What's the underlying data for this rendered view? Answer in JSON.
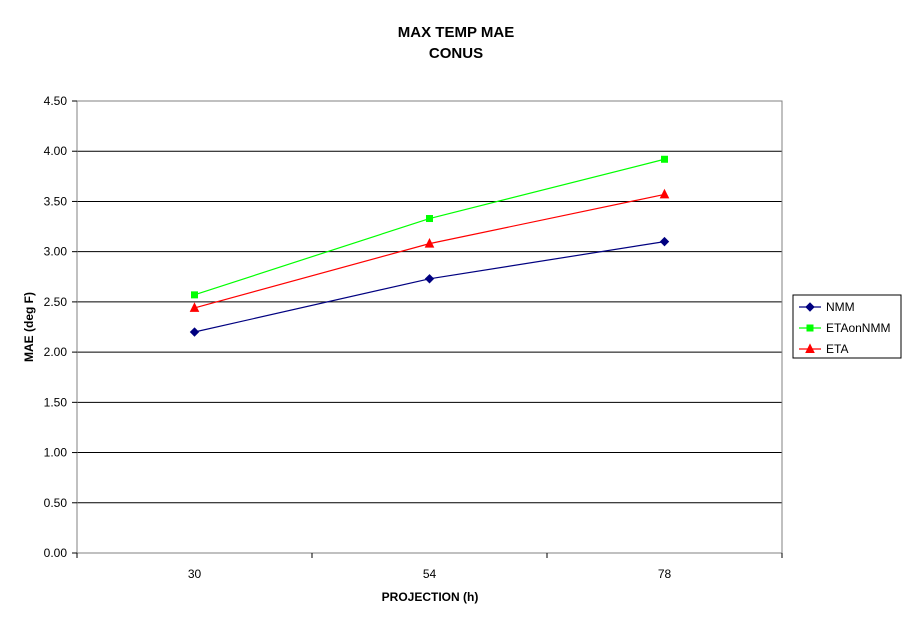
{
  "chart_data": {
    "type": "line",
    "title": "MAX TEMP MAE",
    "subtitle": "CONUS",
    "xlabel": "PROJECTION (h)",
    "ylabel": "MAE (deg F)",
    "categories": [
      "30",
      "54",
      "78"
    ],
    "ylim": [
      0,
      4.5
    ],
    "yticks": [
      "0.00",
      "0.50",
      "1.00",
      "1.50",
      "2.00",
      "2.50",
      "3.00",
      "3.50",
      "4.00",
      "4.50"
    ],
    "grid": true,
    "legend_position": "right",
    "series": [
      {
        "name": "NMM",
        "values": [
          2.2,
          2.73,
          3.1
        ],
        "color": "#000080",
        "marker": "diamond"
      },
      {
        "name": "ETAonNMM",
        "values": [
          2.57,
          3.33,
          3.92
        ],
        "color": "#00FF00",
        "marker": "square"
      },
      {
        "name": "ETA",
        "values": [
          2.44,
          3.08,
          3.57
        ],
        "color": "#FF0000",
        "marker": "triangle"
      }
    ]
  }
}
